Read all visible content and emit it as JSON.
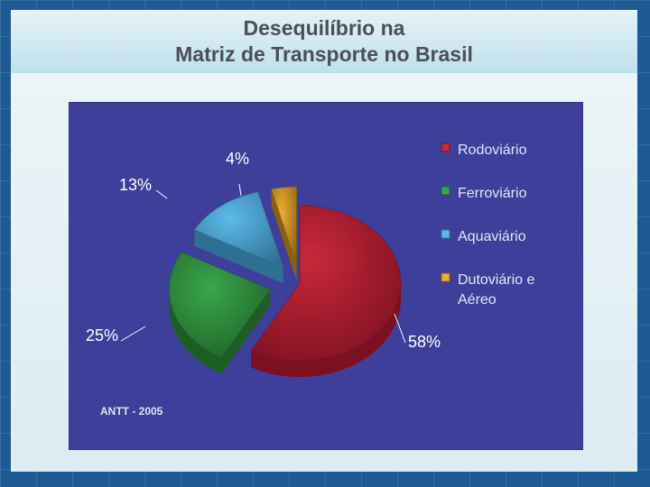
{
  "slide": {
    "title_line1": "Desequilíbrio na",
    "title_line2": "Matriz de Transporte no Brasil",
    "source": "ANTT - 2005"
  },
  "chart_data": {
    "type": "pie",
    "title": "",
    "legend_position": "right",
    "labels": [
      "Rodoviário",
      "Ferroviário",
      "Aquaviário",
      "Dutoviário e Aéreo"
    ],
    "legend_lines": [
      [
        "Rodoviário"
      ],
      [
        "Ferroviário"
      ],
      [
        "Aquaviário"
      ],
      [
        "Dutoviário e",
        "Aéreo"
      ]
    ],
    "values": [
      58,
      25,
      13,
      4
    ],
    "value_labels": [
      "58%",
      "25%",
      "13%",
      "4%"
    ],
    "colors": [
      "#c8283a",
      "#3aa64a",
      "#5bbbe8",
      "#eab032"
    ],
    "dark_colors": [
      "#7a1020",
      "#1d5e27",
      "#2f6f94",
      "#8a6010"
    ],
    "exploded": true,
    "three_d": true
  }
}
